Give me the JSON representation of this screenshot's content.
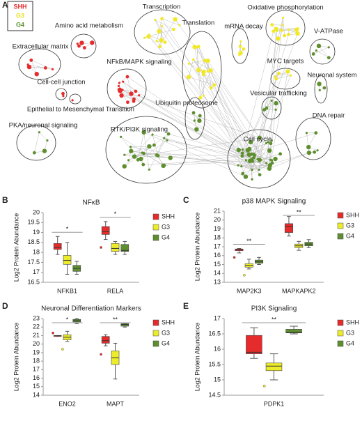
{
  "network": {
    "panel": "A",
    "legend": [
      {
        "name": "SHH",
        "color": "#e52b2b"
      },
      {
        "name": "G3",
        "color": "#e8e020"
      },
      {
        "name": "G4",
        "color": "#5e8f2e"
      }
    ],
    "clusters": [
      {
        "label": "Extracellular matrix",
        "color": "#e52b2b"
      },
      {
        "label": "Amino acid metabolism",
        "color": "#e52b2b"
      },
      {
        "label": "Cell-cell junction",
        "color": "#e52b2b"
      },
      {
        "label": "Epithelial to Mesenchymal Transition",
        "color": "#e52b2b"
      },
      {
        "label": "NFkB/MAPK signaling",
        "color": "#e52b2b"
      },
      {
        "label": "Transcription",
        "color": "#f2e82a"
      },
      {
        "label": "Translation",
        "color": "#f2e82a"
      },
      {
        "label": "mRNA decay",
        "color": "#f2e82a"
      },
      {
        "label": "Oxidative phosphorylation",
        "color": "#f2e82a"
      },
      {
        "label": "V-ATPase",
        "color": "#5e8f2e"
      },
      {
        "label": "MYC targets",
        "color": "#f2e82a"
      },
      {
        "label": "Neuronal system",
        "color": "#5e8f2e"
      },
      {
        "label": "Vesicular trafficking",
        "color": "#5e8f2e"
      },
      {
        "label": "Ubiquitin proteosome",
        "color": "#5e8f2e"
      },
      {
        "label": "DNA repair",
        "color": "#5e8f2e"
      },
      {
        "label": "RTK/PI3K signaling",
        "color": "#5e8f2e"
      },
      {
        "label": "PKA/neuronal signaling",
        "color": "#5e8f2e"
      },
      {
        "label": "Cell cycle",
        "color": "#5e8f2e"
      }
    ]
  },
  "chart_data": [
    {
      "type": "box",
      "panel": "B",
      "title": "NFκB",
      "y_label": "Log2 Protein Abundance",
      "categories": [
        "NFKB1",
        "RELA"
      ],
      "significance": [
        "*",
        "*"
      ],
      "ylim": [
        16.5,
        20
      ],
      "yticks": [
        16.5,
        17,
        17.5,
        18,
        18.5,
        19,
        19.5,
        20
      ],
      "series": [
        {
          "name": "SHH",
          "color": "#e52b2b",
          "values": [
            {
              "whisker_low": 17.9,
              "q1": 18.15,
              "median": 18.25,
              "q3": 18.45,
              "whisker_high": 18.8
            },
            {
              "whisker_low": 18.65,
              "q1": 18.9,
              "median": 19.05,
              "q3": 19.3,
              "whisker_high": 19.55,
              "outliers": [
                18.25
              ]
            }
          ]
        },
        {
          "name": "G3",
          "color": "#ecec2a",
          "values": [
            {
              "whisker_low": 16.9,
              "q1": 17.4,
              "median": 17.6,
              "q3": 17.85,
              "whisker_high": 18.5
            },
            {
              "whisker_low": 17.9,
              "q1": 18.05,
              "median": 18.2,
              "q3": 18.45,
              "whisker_high": 18.55
            }
          ]
        },
        {
          "name": "G4",
          "color": "#5e8f2e",
          "values": [
            {
              "whisker_low": 16.9,
              "q1": 17.05,
              "median": 17.2,
              "q3": 17.35,
              "whisker_high": 17.55
            },
            {
              "whisker_low": 17.9,
              "q1": 18.05,
              "median": 18.1,
              "q3": 18.4,
              "whisker_high": 18.55
            }
          ]
        }
      ]
    },
    {
      "type": "box",
      "panel": "C",
      "title": "p38 MAPK Signaling",
      "y_label": "Log2 Protein Abundance",
      "categories": [
        "MAP2K3",
        "MAPKAPK2"
      ],
      "significance": [
        "**",
        "**"
      ],
      "ylim": [
        13,
        21
      ],
      "yticks": [
        13,
        14,
        15,
        16,
        17,
        18,
        19,
        20,
        21
      ],
      "series": [
        {
          "name": "SHH",
          "color": "#e52b2b",
          "values": [
            {
              "whisker_low": 16.3,
              "q1": 16.55,
              "median": 16.7,
              "q3": 16.75,
              "whisker_high": 16.8,
              "outliers": [
                15.8
              ]
            },
            {
              "whisker_low": 18.2,
              "q1": 18.6,
              "median": 19.3,
              "q3": 19.6,
              "whisker_high": 20.4
            }
          ]
        },
        {
          "name": "G3",
          "color": "#ecec2a",
          "values": [
            {
              "whisker_low": 14.5,
              "q1": 14.7,
              "median": 14.9,
              "q3": 15.1,
              "whisker_high": 15.6,
              "outliers": [
                13.8
              ]
            },
            {
              "whisker_low": 16.6,
              "q1": 16.9,
              "median": 17.1,
              "q3": 17.3,
              "whisker_high": 17.6
            }
          ]
        },
        {
          "name": "G4",
          "color": "#5e8f2e",
          "values": [
            {
              "whisker_low": 15,
              "q1": 15.15,
              "median": 15.3,
              "q3": 15.5,
              "whisker_high": 15.8
            },
            {
              "whisker_low": 16.9,
              "q1": 17.1,
              "median": 17.3,
              "q3": 17.5,
              "whisker_high": 17.8
            }
          ]
        }
      ]
    },
    {
      "type": "box",
      "panel": "D",
      "title": "Neuronal Differentiation Markers",
      "y_label": "Log2 Protein Abundance",
      "categories": [
        "ENO2",
        "MAPT"
      ],
      "significance": [
        "*",
        "**"
      ],
      "ylim": [
        14,
        23
      ],
      "yticks": [
        14,
        15,
        16,
        17,
        18,
        19,
        20,
        21,
        22,
        23
      ],
      "series": [
        {
          "name": "SHH",
          "color": "#e52b2b",
          "values": [
            {
              "whisker_low": 20.9,
              "q1": 20.9,
              "median": 21,
              "q3": 21,
              "whisker_high": 21,
              "outliers": [
                21.3
              ]
            },
            {
              "whisker_low": 19.8,
              "q1": 20.1,
              "median": 20.4,
              "q3": 20.9,
              "whisker_high": 21.1,
              "outliers": [
                18.8
              ]
            }
          ]
        },
        {
          "name": "G3",
          "color": "#ecec2a",
          "values": [
            {
              "whisker_low": 20.3,
              "q1": 20.5,
              "median": 20.8,
              "q3": 21.1,
              "whisker_high": 21.5,
              "outliers": [
                19.4
              ]
            },
            {
              "whisker_low": 15.9,
              "q1": 17.6,
              "median": 18.4,
              "q3": 19.2,
              "whisker_high": 20.1
            }
          ]
        },
        {
          "name": "G4",
          "color": "#5e8f2e",
          "values": [
            {
              "whisker_low": 22.4,
              "q1": 22.6,
              "median": 22.75,
              "q3": 22.9,
              "whisker_high": 23
            },
            {
              "whisker_low": 22,
              "q1": 22.1,
              "median": 22.3,
              "q3": 22.4,
              "whisker_high": 22.5
            }
          ]
        }
      ]
    },
    {
      "type": "box",
      "panel": "E",
      "title": "PI3K Signaling",
      "y_label": "Log2 Protein Abundance",
      "categories": [
        "PDPK1"
      ],
      "significance": [
        "**"
      ],
      "ylim": [
        14.5,
        17
      ],
      "yticks": [
        14.5,
        15,
        15.5,
        16,
        16.5,
        17
      ],
      "series": [
        {
          "name": "SHH",
          "color": "#e52b2b",
          "values": [
            {
              "whisker_low": 15.7,
              "q1": 15.85,
              "median": 15.9,
              "q3": 16.45,
              "whisker_high": 16.7
            }
          ]
        },
        {
          "name": "G3",
          "color": "#ecec2a",
          "values": [
            {
              "whisker_low": 15,
              "q1": 15.3,
              "median": 15.45,
              "q3": 15.55,
              "whisker_high": 15.85,
              "outliers": [
                14.8
              ]
            }
          ]
        },
        {
          "name": "G4",
          "color": "#5e8f2e",
          "values": [
            {
              "whisker_low": 16.5,
              "q1": 16.53,
              "median": 16.55,
              "q3": 16.65,
              "whisker_high": 16.75
            }
          ]
        }
      ]
    }
  ]
}
